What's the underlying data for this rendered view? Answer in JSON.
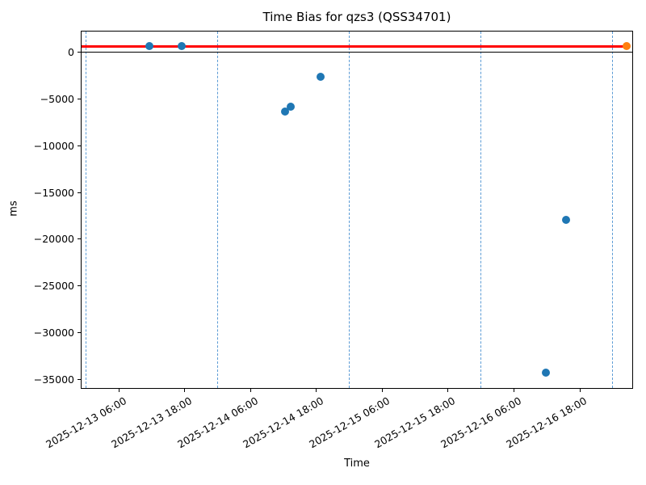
{
  "chart_data": {
    "type": "scatter",
    "title": "Time Bias for qzs3 (QSS34701)",
    "xlabel": "Time",
    "ylabel": "ms",
    "xlim": [
      "2025-12-12 23:01",
      "2025-12-17 03:43"
    ],
    "ylim": [
      -36000,
      2300
    ],
    "grid": "vertical-dashed-day-lines",
    "legend": "none",
    "x_ticks": [
      {
        "time": "2025-12-13 06:00",
        "label": "2025-12-13 06:00"
      },
      {
        "time": "2025-12-13 18:00",
        "label": "2025-12-13 18:00"
      },
      {
        "time": "2025-12-14 06:00",
        "label": "2025-12-14 06:00"
      },
      {
        "time": "2025-12-14 18:00",
        "label": "2025-12-14 18:00"
      },
      {
        "time": "2025-12-15 06:00",
        "label": "2025-12-15 06:00"
      },
      {
        "time": "2025-12-15 18:00",
        "label": "2025-12-15 18:00"
      },
      {
        "time": "2025-12-16 06:00",
        "label": "2025-12-16 06:00"
      },
      {
        "time": "2025-12-16 18:00",
        "label": "2025-12-16 18:00"
      }
    ],
    "y_ticks": [
      {
        "value": 0,
        "label": "0"
      },
      {
        "value": -5000,
        "label": "−5000"
      },
      {
        "value": -10000,
        "label": "−10000"
      },
      {
        "value": -15000,
        "label": "−15000"
      },
      {
        "value": -20000,
        "label": "−20000"
      },
      {
        "value": -25000,
        "label": "−25000"
      },
      {
        "value": -30000,
        "label": "−30000"
      },
      {
        "value": -35000,
        "label": "−35000"
      }
    ],
    "day_gridlines": [
      "2025-12-13 00:00",
      "2025-12-14 00:00",
      "2025-12-15 00:00",
      "2025-12-16 00:00",
      "2025-12-17 00:00"
    ],
    "series": [
      {
        "name": "bias-measurements",
        "color": "#1f77b4",
        "marker": "circle",
        "points": [
          {
            "time": "2025-12-13 11:33",
            "ms": 620
          },
          {
            "time": "2025-12-13 17:29",
            "ms": 620
          },
          {
            "time": "2025-12-14 12:16",
            "ms": -6350
          },
          {
            "time": "2025-12-14 13:14",
            "ms": -5870
          },
          {
            "time": "2025-12-14 18:45",
            "ms": -2660
          },
          {
            "time": "2025-12-16 11:49",
            "ms": -34270
          },
          {
            "time": "2025-12-16 15:30",
            "ms": -17930
          }
        ]
      },
      {
        "name": "latest-measurement",
        "color": "#ff7f0e",
        "marker": "circle",
        "points": [
          {
            "time": "2025-12-17 02:31",
            "ms": 620
          }
        ]
      }
    ],
    "reference_lines": [
      {
        "name": "current-bias-line",
        "orientation": "horizontal",
        "value": 620,
        "color": "#ff0000",
        "style": "solid",
        "ends_at": "2025-12-17 02:31"
      },
      {
        "name": "zero-line",
        "orientation": "horizontal",
        "value": 0,
        "color": "#000000",
        "style": "solid"
      }
    ],
    "colors": {
      "gridline": "#5b9bd5",
      "spine": "#000000",
      "background": "#ffffff"
    }
  }
}
